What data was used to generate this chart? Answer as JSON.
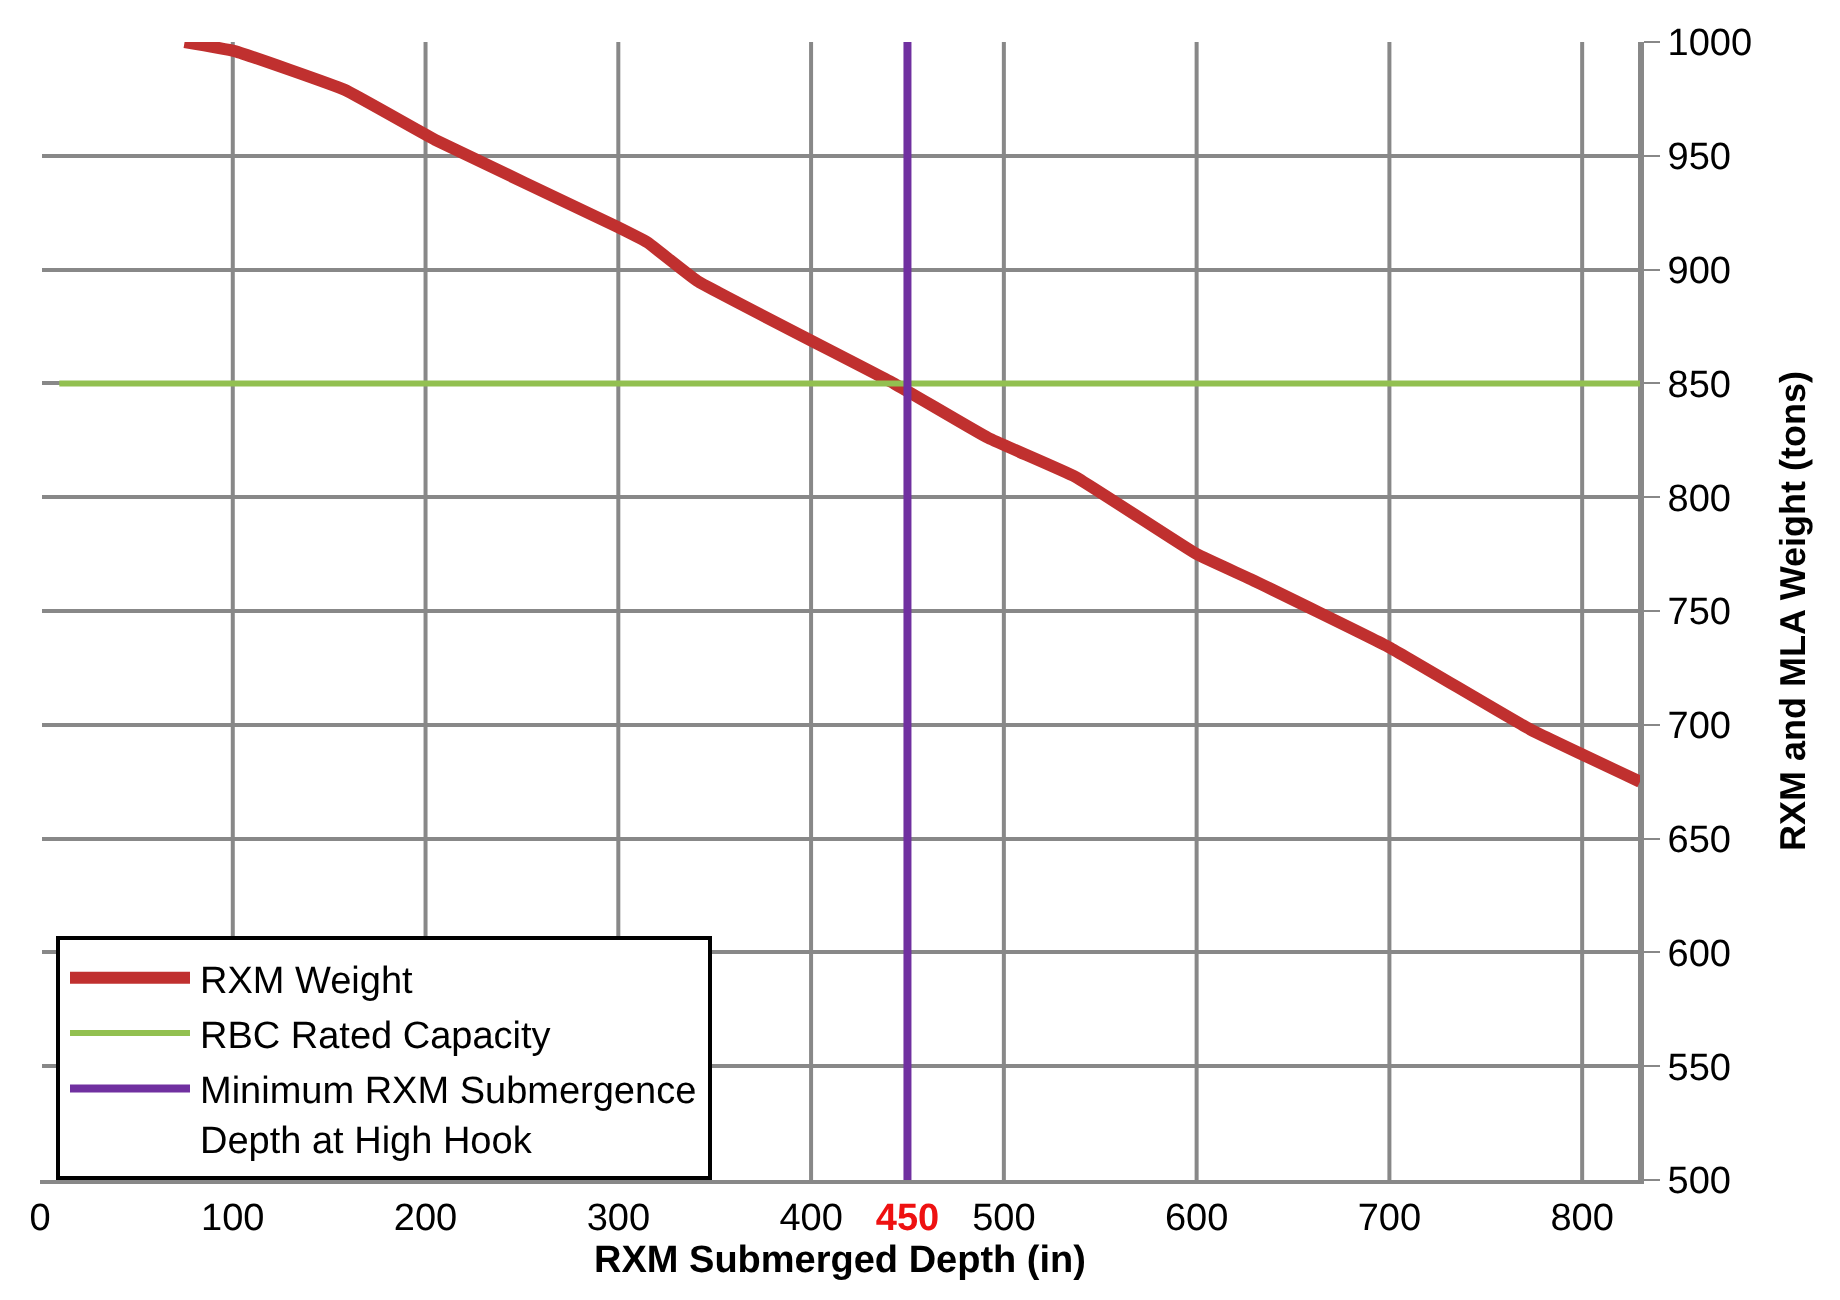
{
  "chart_data": {
    "type": "line",
    "xlabel": "RXM Submerged Depth (in)",
    "ylabel": "RXM and MLA Weight (tons)",
    "x": [
      75,
      101,
      158,
      205,
      299,
      315,
      341,
      443,
      492,
      537,
      600,
      628,
      700,
      773,
      830
    ],
    "series": [
      {
        "name": "RXM Weight",
        "color": "#c0302f",
        "values": [
          1000,
          996,
          979,
          957,
          919,
          912,
          895,
          850,
          826,
          809,
          775,
          764,
          734,
          698,
          675
        ]
      },
      {
        "name": "RBC Rated Capacity",
        "color": "#92c050",
        "x": [
          10,
          830
        ],
        "values": [
          850,
          850
        ]
      },
      {
        "name": "Minimum RXM Submergence Depth at High Hook",
        "color": "#7030a0",
        "x": [
          450,
          450
        ],
        "values": [
          500,
          1000
        ]
      }
    ],
    "xlim": [
      0,
      830
    ],
    "xticks": [
      0,
      100,
      200,
      300,
      400,
      450,
      500,
      600,
      700,
      800
    ],
    "ylim": [
      500,
      1000
    ],
    "yticks": [
      500,
      550,
      600,
      650,
      700,
      750,
      800,
      850,
      900,
      950,
      1000
    ],
    "grid": true,
    "legend": "bottom left",
    "marker": "none",
    "line_style": "solid"
  }
}
